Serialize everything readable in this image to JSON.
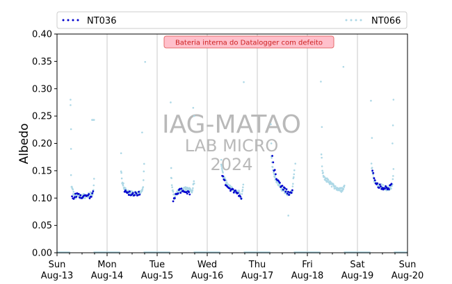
{
  "chart_data": {
    "type": "scatter",
    "title": "",
    "ylabel": "Albedo",
    "xlabel": "",
    "ylim": [
      0,
      0.4
    ],
    "yticks": [
      "0.00",
      "0.05",
      "0.10",
      "0.15",
      "0.20",
      "0.25",
      "0.30",
      "0.35",
      "0.40"
    ],
    "xlim": [
      "2024-08-13",
      "2024-08-20"
    ],
    "xticks": [
      {
        "day": "Sun",
        "date": "Aug-13"
      },
      {
        "day": "Mon",
        "date": "Aug-14"
      },
      {
        "day": "Tue",
        "date": "Aug-15"
      },
      {
        "day": "Wed",
        "date": "Aug-16"
      },
      {
        "day": "Thu",
        "date": "Aug-17"
      },
      {
        "day": "Fri",
        "date": "Aug-18"
      },
      {
        "day": "Sat",
        "date": "Aug-19"
      },
      {
        "day": "Sun",
        "date": "Aug-20"
      }
    ],
    "grid": "vertical at day boundaries",
    "legend": "top, two entries spread across",
    "annotation": "Bateria interna do Datalogger com defeito",
    "watermark": [
      "IAG-MATAO",
      "LAB MICRO",
      "2024"
    ],
    "series": [
      {
        "name": "NT036",
        "color": "#0000cd",
        "daily_profile": [
          {
            "day": "Aug-13",
            "x": [
              0.3,
              0.36,
              0.42,
              0.48,
              0.54,
              0.6,
              0.66,
              0.72
            ],
            "y": [
              0.1,
              0.104,
              0.107,
              0.103,
              0.101,
              0.106,
              0.102,
              0.11
            ]
          },
          {
            "day": "Aug-14",
            "x": [
              0.35,
              0.45,
              0.55,
              0.65
            ],
            "y": [
              0.112,
              0.108,
              0.106,
              0.11
            ]
          },
          {
            "day": "Aug-15",
            "x": [
              0.32,
              0.38,
              0.45,
              0.55,
              0.65
            ],
            "y": [
              0.098,
              0.108,
              0.114,
              0.112,
              0.11
            ]
          },
          {
            "day": "Aug-16",
            "x": [
              0.3,
              0.36,
              0.42,
              0.48,
              0.55,
              0.62,
              0.68
            ],
            "y": [
              0.14,
              0.128,
              0.12,
              0.115,
              0.112,
              0.108,
              0.1
            ]
          },
          {
            "day": "Aug-17",
            "x": [
              0.3,
              0.33,
              0.37,
              0.42,
              0.48,
              0.55,
              0.62,
              0.66,
              0.7
            ],
            "y": [
              0.18,
              0.155,
              0.14,
              0.128,
              0.12,
              0.115,
              0.11,
              0.105,
              0.118
            ]
          },
          {
            "day": "Aug-19",
            "x": [
              0.3,
              0.36,
              0.42,
              0.48,
              0.55,
              0.62,
              0.68
            ],
            "y": [
              0.152,
              0.13,
              0.122,
              0.12,
              0.118,
              0.116,
              0.125
            ]
          }
        ]
      },
      {
        "name": "NT066",
        "color": "#add8e6",
        "daily_profile": [
          {
            "day": "Aug-13",
            "outliers": [
              [
                0.27,
                0.28
              ],
              [
                0.27,
                0.27
              ],
              [
                0.28,
                0.226
              ],
              [
                0.28,
                0.19
              ],
              [
                0.28,
                0.142
              ],
              [
                0.7,
                0.243
              ],
              [
                0.72,
                0.243
              ],
              [
                0.74,
                0.243
              ]
            ],
            "x": [
              0.29,
              0.35,
              0.42,
              0.5,
              0.58,
              0.65,
              0.72,
              0.74
            ],
            "y": [
              0.12,
              0.104,
              0.102,
              0.104,
              0.103,
              0.106,
              0.11,
              0.135
            ]
          },
          {
            "day": "Aug-14",
            "outliers": [
              [
                0.28,
                0.182
              ],
              [
                0.7,
                0.22
              ],
              [
                0.76,
                0.349
              ]
            ],
            "x": [
              0.28,
              0.3,
              0.36,
              0.44,
              0.52,
              0.6,
              0.68,
              0.72,
              0.74
            ],
            "y": [
              0.15,
              0.13,
              0.115,
              0.11,
              0.108,
              0.108,
              0.11,
              0.12,
              0.16
            ]
          },
          {
            "day": "Aug-15",
            "outliers": [
              [
                0.27,
                0.275
              ],
              [
                0.28,
                0.155
              ],
              [
                0.72,
                0.265
              ],
              [
                0.74,
                0.25
              ]
            ],
            "x": [
              0.28,
              0.3,
              0.34,
              0.4,
              0.48,
              0.56,
              0.64,
              0.7,
              0.74
            ],
            "y": [
              0.14,
              0.12,
              0.1,
              0.11,
              0.115,
              0.117,
              0.115,
              0.112,
              0.13
            ]
          },
          {
            "day": "Aug-16",
            "outliers": [
              [
                0.73,
                0.312
              ],
              [
                0.28,
                0.17
              ]
            ],
            "x": [
              0.28,
              0.32,
              0.38,
              0.45,
              0.52,
              0.58,
              0.64,
              0.68,
              0.72
            ],
            "y": [
              0.158,
              0.14,
              0.128,
              0.12,
              0.115,
              0.112,
              0.11,
              0.095,
              0.125
            ]
          },
          {
            "day": "Aug-17",
            "outliers": [
              [
                0.27,
                0.235
              ],
              [
                0.28,
                0.2
              ],
              [
                0.62,
                0.068
              ],
              [
                0.76,
                0.163
              ]
            ],
            "x": [
              0.28,
              0.3,
              0.34,
              0.4,
              0.46,
              0.52,
              0.58,
              0.64,
              0.7,
              0.74
            ],
            "y": [
              0.175,
              0.16,
              0.14,
              0.128,
              0.12,
              0.115,
              0.11,
              0.105,
              0.115,
              0.15
            ]
          },
          {
            "day": "Aug-18",
            "outliers": [
              [
                0.27,
                0.313
              ],
              [
                0.29,
                0.23
              ],
              [
                0.72,
                0.34
              ]
            ],
            "x": [
              0.28,
              0.3,
              0.34,
              0.4,
              0.46,
              0.52,
              0.58,
              0.64,
              0.7,
              0.74
            ],
            "y": [
              0.18,
              0.15,
              0.138,
              0.132,
              0.126,
              0.122,
              0.118,
              0.115,
              0.115,
              0.12
            ]
          },
          {
            "day": "Aug-19",
            "outliers": [
              [
                0.27,
                0.278
              ],
              [
                0.29,
                0.21
              ],
              [
                0.72,
                0.28
              ],
              [
                0.71,
                0.233
              ],
              [
                0.7,
                0.2
              ]
            ],
            "x": [
              0.28,
              0.3,
              0.34,
              0.4,
              0.46,
              0.52,
              0.58,
              0.64,
              0.7,
              0.72
            ],
            "y": [
              0.165,
              0.145,
              0.13,
              0.125,
              0.122,
              0.12,
              0.118,
              0.116,
              0.125,
              0.15
            ]
          }
        ]
      }
    ]
  }
}
